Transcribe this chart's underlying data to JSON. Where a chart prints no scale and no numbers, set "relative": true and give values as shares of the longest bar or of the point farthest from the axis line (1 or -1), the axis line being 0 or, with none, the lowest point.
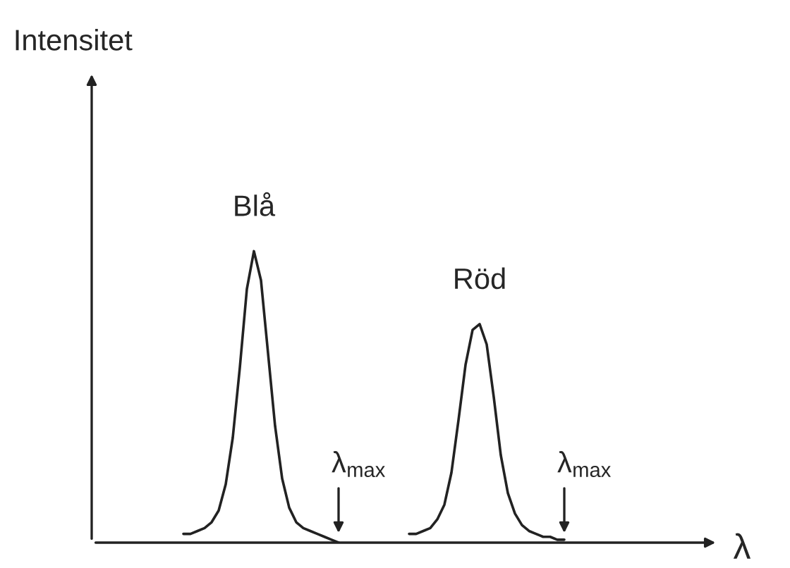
{
  "chart_data": {
    "type": "line",
    "relative": true,
    "xlabel": "λ",
    "legend": false,
    "marker": "none",
    "line_style": "solid",
    "categories": [
      null,
      null,
      null,
      null,
      null,
      null,
      null,
      null,
      null,
      null,
      null,
      null,
      null,
      null,
      null,
      null,
      null,
      null,
      null,
      null,
      null,
      null,
      null,
      null,
      null,
      null,
      null,
      null,
      null,
      null,
      null,
      null,
      null,
      null,
      null,
      null,
      null,
      null,
      null,
      null,
      null,
      null,
      null,
      null,
      null,
      null,
      null,
      null,
      null,
      null,
      null,
      null,
      null,
      null,
      null
    ],
    "series": [
      {
        "name": "Blå",
        "color": "#222222",
        "values": [
          0.03,
          0.03,
          0.04,
          0.05,
          0.07,
          0.11,
          0.2,
          0.36,
          0.6,
          0.87,
          1,
          0.9,
          0.65,
          0.4,
          0.22,
          0.12,
          0.07,
          0.05,
          0.04,
          0.03,
          0.02,
          0.01,
          0.0,
          null,
          null,
          null,
          null,
          null,
          null,
          null,
          null,
          null,
          null,
          null,
          null,
          null,
          null,
          null,
          null,
          null,
          null,
          null,
          null,
          null,
          null,
          null,
          null,
          null,
          null,
          null,
          null,
          null,
          null,
          null,
          null
        ]
      },
      {
        "name": "Röd",
        "color": "#222222",
        "values": [
          null,
          null,
          null,
          null,
          null,
          null,
          null,
          null,
          null,
          null,
          null,
          null,
          null,
          null,
          null,
          null,
          null,
          null,
          null,
          null,
          null,
          null,
          null,
          null,
          null,
          null,
          null,
          null,
          null,
          null,
          null,
          null,
          0.03,
          0.03,
          0.04,
          0.05,
          0.08,
          0.13,
          0.24,
          0.42,
          0.61,
          0.73,
          0.75,
          0.68,
          0.5,
          0.3,
          0.17,
          0.1,
          0.06,
          0.04,
          0.03,
          0.02,
          0.02,
          0.01,
          0.01
        ]
      }
    ],
    "annotations": [
      "Intensitet",
      "λ$_{max}$",
      "λ$_{max}$"
    ]
  }
}
